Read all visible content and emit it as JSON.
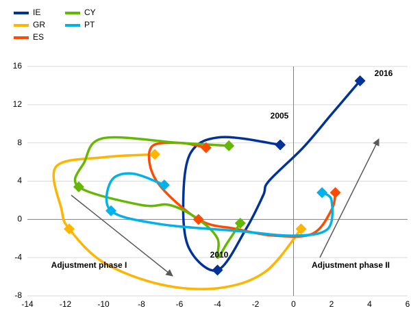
{
  "chart_data": {
    "type": "connected-scatter",
    "xlim": [
      -14,
      6
    ],
    "ylim": [
      -8,
      16
    ],
    "xticks": [
      -14,
      -12,
      -10,
      -8,
      -6,
      -4,
      -2,
      0,
      2,
      4,
      6
    ],
    "yticks": [
      -8,
      -4,
      0,
      4,
      8,
      12,
      16
    ],
    "grid": true,
    "legend": "top-left",
    "annotations": [
      "2005",
      "2010",
      "2016",
      "Adjustment phase I",
      "Adjustment phase II"
    ],
    "series": [
      {
        "name": "IE",
        "color": "#003299",
        "markers": [
          0,
          5,
          11
        ],
        "x": [
          -0.7,
          -3.8,
          -5.4,
          -5.8,
          -5.5,
          -4,
          -2.5,
          -1.6,
          -1.3,
          0.5,
          2,
          3.5
        ],
        "values": [
          7.8,
          8.6,
          7,
          2,
          -3,
          -5.3,
          -1,
          2.5,
          4,
          7.5,
          11,
          14.5
        ]
      },
      {
        "name": "GR",
        "color": "#ffb400",
        "markers": [
          0,
          4,
          9
        ],
        "x": [
          -7.3,
          -10,
          -12.5,
          -12.2,
          -11.8,
          -10,
          -7,
          -4,
          -1.5,
          0.4
        ],
        "values": [
          6.8,
          6.5,
          5.5,
          1,
          -1,
          -4.5,
          -6.8,
          -7.2,
          -5.5,
          -1
        ]
      },
      {
        "name": "ES",
        "color": "#ff4b00",
        "markers": [
          0,
          4,
          9
        ],
        "x": [
          -4.6,
          -6,
          -7.5,
          -7.2,
          -5,
          -3,
          -1,
          1,
          2,
          2.2
        ],
        "values": [
          7.5,
          8,
          7.5,
          4,
          0,
          -1,
          -1.7,
          -1.5,
          1,
          2.8
        ]
      },
      {
        "name": "CY",
        "color": "#65b800",
        "markers": [
          0,
          4,
          11
        ],
        "x": [
          -3.4,
          -6,
          -10,
          -11,
          -11.3,
          -8,
          -6.5,
          -5,
          -4,
          -4,
          -3.5,
          -2.8
        ],
        "values": [
          7.7,
          8,
          8.5,
          6,
          3.4,
          1.5,
          1.5,
          0,
          -2,
          -4,
          -2.5,
          -0.4
        ]
      },
      {
        "name": "PT",
        "color": "#00b1ea",
        "markers": [
          0,
          3,
          9
        ],
        "x": [
          -6.8,
          -8.5,
          -9.6,
          -9.6,
          -7,
          -3,
          0,
          1.8,
          2,
          1.5
        ],
        "values": [
          3.6,
          4.8,
          4,
          0.9,
          -0.5,
          -1.2,
          -1.7,
          -1,
          2,
          2.8
        ]
      }
    ]
  }
}
